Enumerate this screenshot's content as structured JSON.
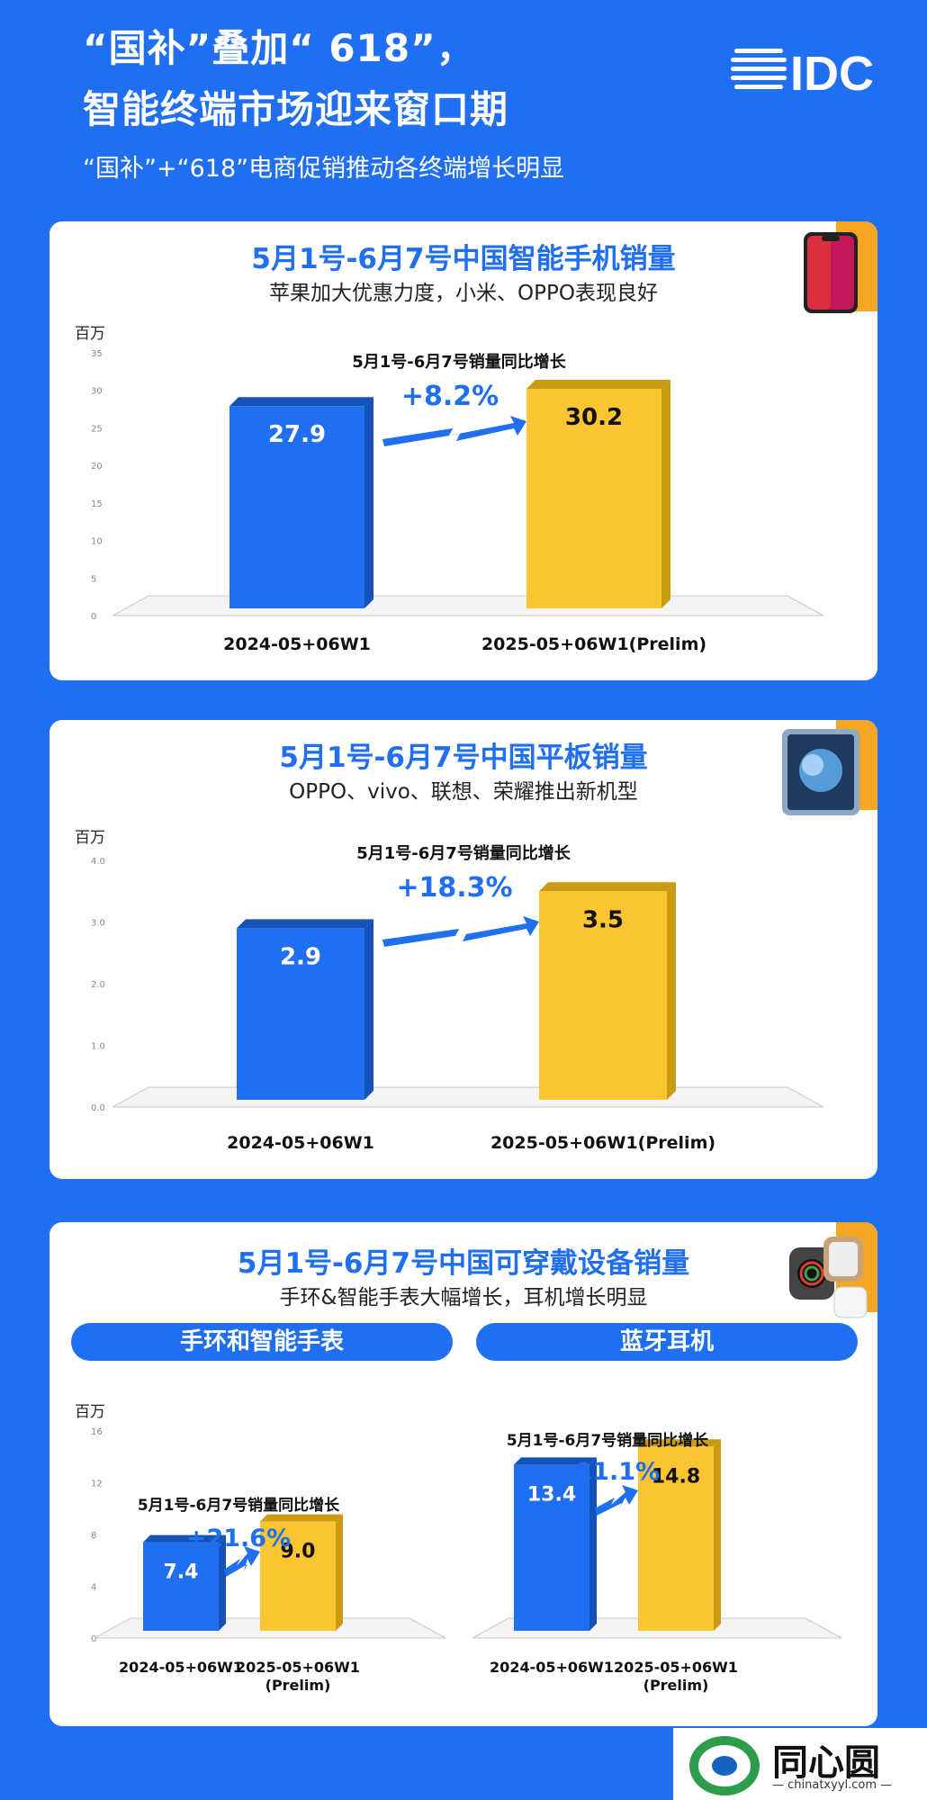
{
  "header": {
    "title_line1": "“国补”叠加“ 618”，",
    "title_line2": "智能终端市场迎来窗口期",
    "subtitle": "“国补”+“618”电商促销推动各终端增长明显",
    "logo_text": "IDC"
  },
  "colors": {
    "background": "#1f6ff0",
    "blue_bar": "#1f6ff0",
    "yellow_bar": "#fbc531",
    "accent_orange": "#f5a623"
  },
  "sections": [
    {
      "title": "5月1号-6月7号中国智能手机销量",
      "subtitle": "苹果加大优惠力度，小米、OPPO表现良好",
      "icon": "smartphone-icon"
    },
    {
      "title": "5月1号-6月7号中国平板销量",
      "subtitle": "OPPO、vivo、联想、荣耀推出新机型",
      "icon": "tablet-icon"
    },
    {
      "title": "5月1号-6月7号中国可穿戴设备销量",
      "subtitle": "手环&智能手表大幅增长，耳机增长明显",
      "icon": "smartwatch-icon",
      "pills": [
        "手环和智能手表",
        "蓝牙耳机"
      ]
    }
  ],
  "chart_data": [
    {
      "type": "bar",
      "ylabel": "百万",
      "categories": [
        "2024-05+06W1",
        "2025-05+06W1(Prelim)"
      ],
      "values": [
        27.9,
        30.2
      ],
      "value_labels": [
        "27.9",
        "30.2"
      ],
      "ylim": [
        0,
        35
      ],
      "yticks": [
        "0",
        "5",
        "10",
        "15",
        "20",
        "25",
        "30",
        "35"
      ],
      "yticks_values": [
        0,
        5,
        10,
        15,
        20,
        25,
        30,
        35
      ],
      "growth_label": "5月1号-6月7号销量同比增长",
      "growth": "+8.2%"
    },
    {
      "type": "bar",
      "ylabel": "百万",
      "categories": [
        "2024-05+06W1",
        "2025-05+06W1(Prelim)"
      ],
      "values": [
        2.9,
        3.5
      ],
      "value_labels": [
        "2.9",
        "3.5"
      ],
      "ylim": [
        0,
        4
      ],
      "yticks": [
        "0.0",
        "1.0",
        "2.0",
        "3.0",
        "4.0"
      ],
      "yticks_values": [
        0,
        1,
        2,
        3,
        4
      ],
      "growth_label": "5月1号-6月7号销量同比增长",
      "growth": "+18.3%"
    },
    {
      "type": "bar",
      "ylabel": "百万",
      "categories": [
        "2024-05+06W1",
        "2025-05+06W1 (Prelim)"
      ],
      "values": [
        7.4,
        9.0
      ],
      "value_labels": [
        "7.4",
        "9.0"
      ],
      "ylim": [
        0,
        16
      ],
      "yticks": [
        "0",
        "4",
        "8",
        "12",
        "16"
      ],
      "yticks_values": [
        0,
        4,
        8,
        12,
        16
      ],
      "growth_label": "5月1号-6月7号销量同比增长",
      "growth": "+21.6%"
    },
    {
      "type": "bar",
      "categories": [
        "2024-05+06W1",
        "2025-05+06W1 (Prelim)"
      ],
      "values": [
        13.4,
        14.8
      ],
      "value_labels": [
        "13.4",
        "14.8"
      ],
      "ylim": [
        0,
        16
      ],
      "growth_label": "5月1号-6月7号销量同比增长",
      "growth": "+11.1%"
    }
  ],
  "watermark": {
    "text": "同心圆",
    "url": "— chinatxyyl.com —"
  }
}
